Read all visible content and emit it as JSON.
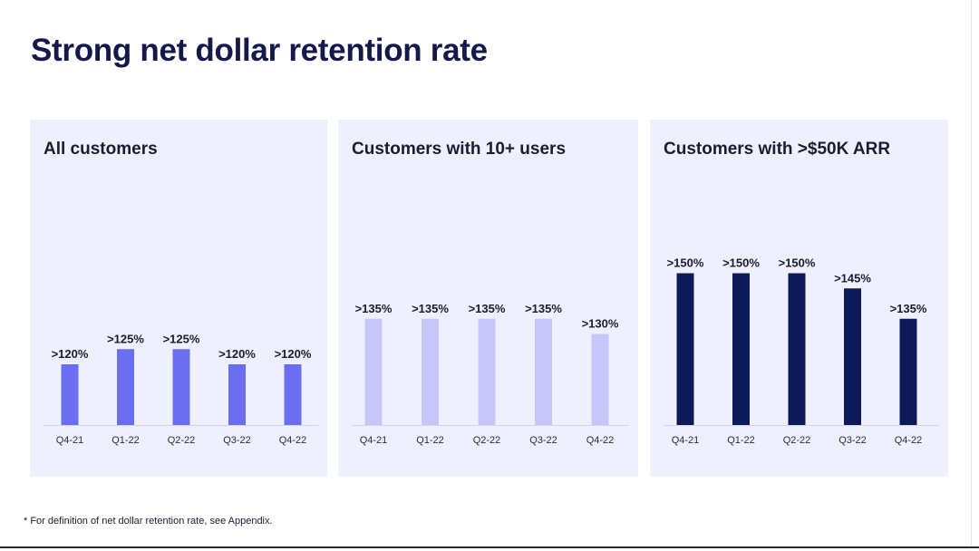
{
  "title": "Strong net dollar retention rate",
  "footnote": "* For definition of net dollar retention rate, see Appendix.",
  "chart_data": [
    {
      "type": "bar",
      "title": "All customers",
      "categories": [
        "Q4-21",
        "Q1-22",
        "Q2-22",
        "Q3-22",
        "Q4-22"
      ],
      "values": [
        120,
        125,
        125,
        120,
        120
      ],
      "labels": [
        ">120%",
        ">125%",
        ">125%",
        ">120%",
        ">120%"
      ],
      "color": "#6c6ef2"
    },
    {
      "type": "bar",
      "title": "Customers with 10+ users",
      "categories": [
        "Q4-21",
        "Q1-22",
        "Q2-22",
        "Q3-22",
        "Q4-22"
      ],
      "values": [
        135,
        135,
        135,
        135,
        130
      ],
      "labels": [
        ">135%",
        ">135%",
        ">135%",
        ">135%",
        ">130%"
      ],
      "color": "#c6c7f8"
    },
    {
      "type": "bar",
      "title": "Customers with >$50K ARR",
      "categories": [
        "Q4-21",
        "Q1-22",
        "Q2-22",
        "Q3-22",
        "Q4-22"
      ],
      "values": [
        150,
        150,
        150,
        145,
        135
      ],
      "labels": [
        ">150%",
        ">150%",
        ">150%",
        ">145%",
        ">135%"
      ],
      "color": "#0d1a57"
    }
  ]
}
